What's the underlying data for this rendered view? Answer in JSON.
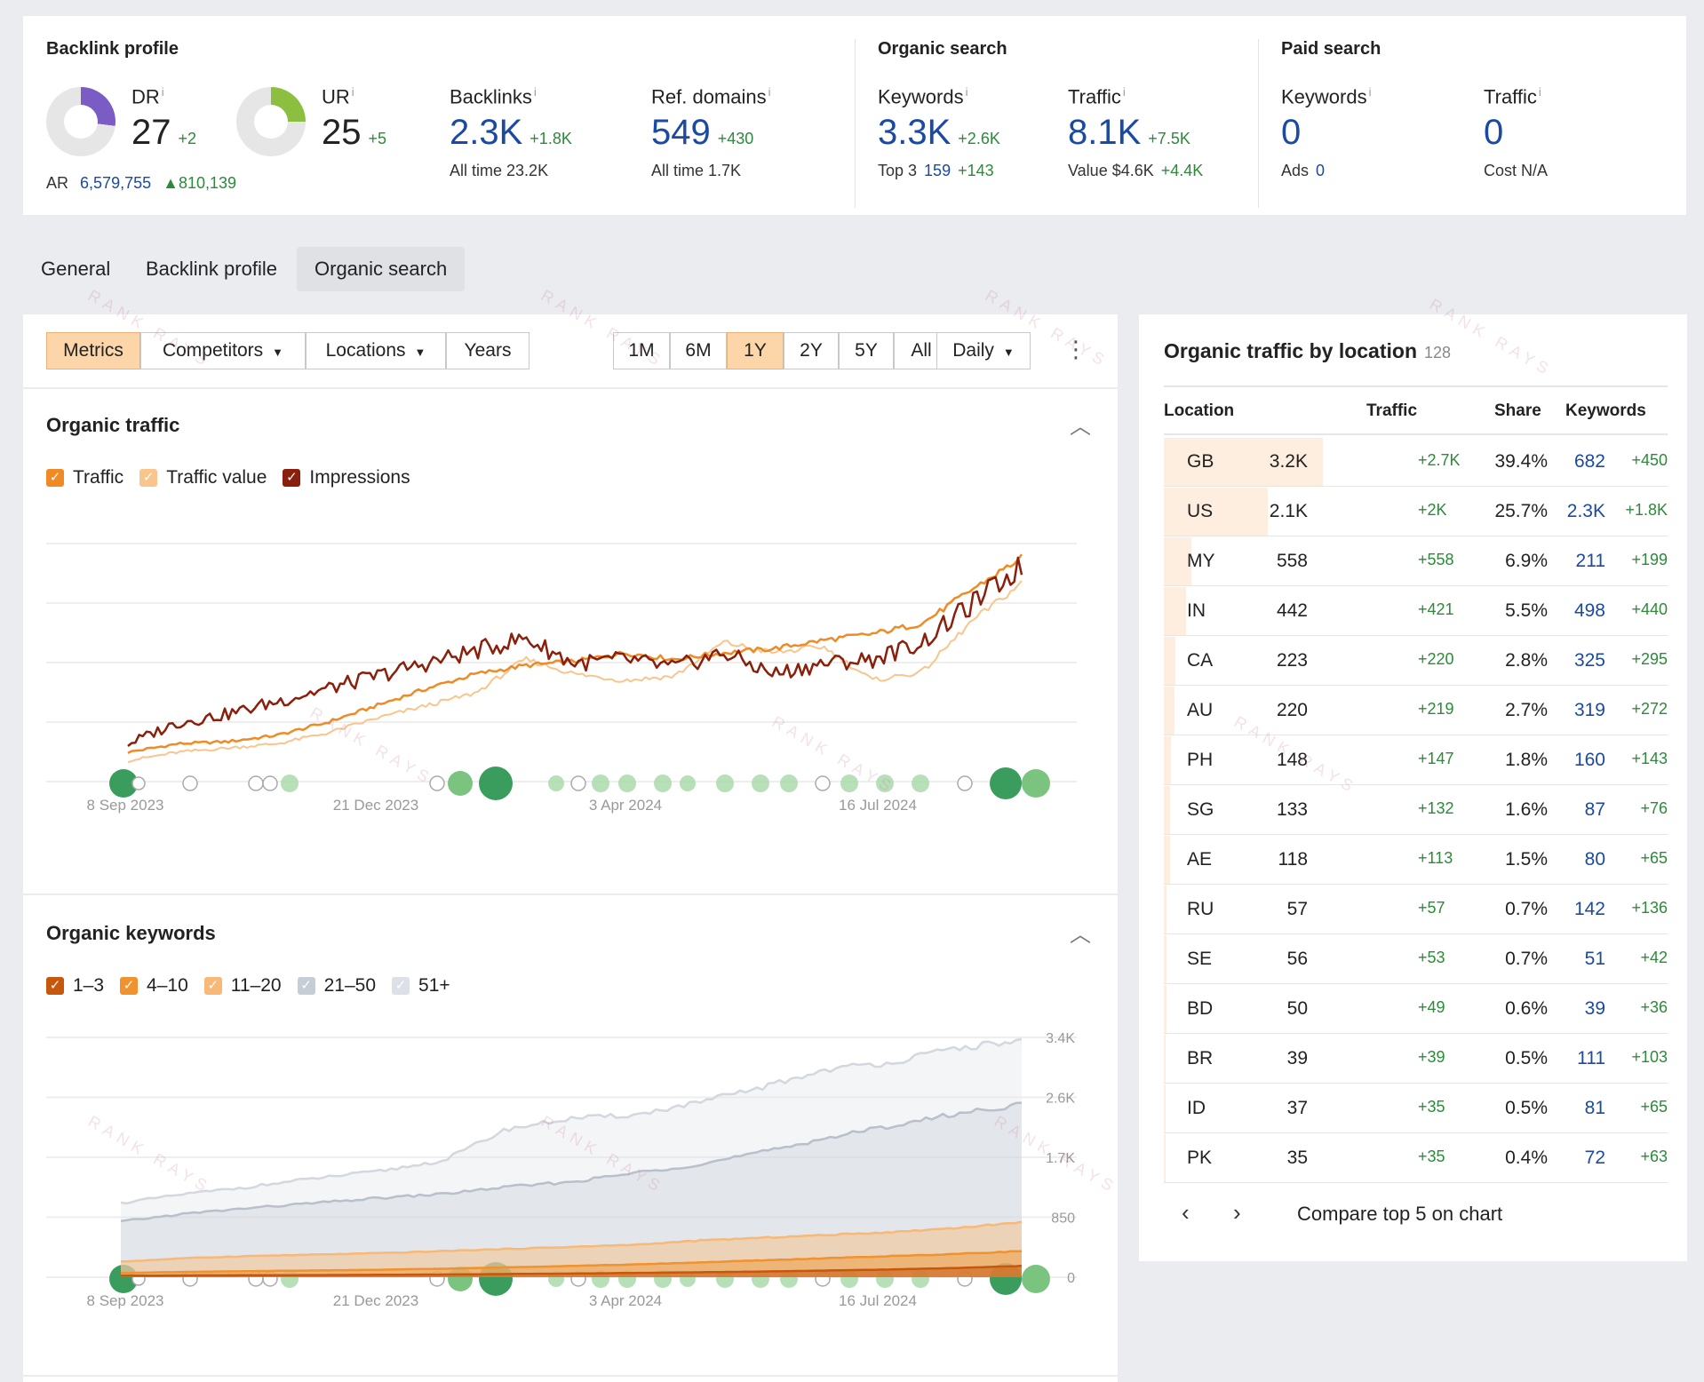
{
  "overview": {
    "backlink_profile": {
      "title": "Backlink profile",
      "dr": {
        "label": "DR",
        "value": "27",
        "delta": "+2",
        "ring_fill": 0.27
      },
      "ur": {
        "label": "UR",
        "value": "25",
        "delta": "+5",
        "ring_fill": 0.25
      },
      "ar": {
        "label": "AR",
        "value": "6,579,755",
        "delta": "▲810,139"
      },
      "backlinks": {
        "label": "Backlinks",
        "value": "2.3K",
        "delta": "+1.8K",
        "sub_label": "All time",
        "sub_value": "23.2K"
      },
      "ref_domains": {
        "label": "Ref. domains",
        "value": "549",
        "delta": "+430",
        "sub_label": "All time",
        "sub_value": "1.7K"
      }
    },
    "organic_search": {
      "title": "Organic search",
      "keywords": {
        "label": "Keywords",
        "value": "3.3K",
        "delta": "+2.6K",
        "sub_label": "Top 3",
        "sub_value": "159",
        "sub_delta": "+143"
      },
      "traffic": {
        "label": "Traffic",
        "value": "8.1K",
        "delta": "+7.5K",
        "sub_label": "Value",
        "sub_value": "$4.6K",
        "sub_delta": "+4.4K"
      }
    },
    "paid_search": {
      "title": "Paid search",
      "keywords": {
        "label": "Keywords",
        "value": "0",
        "sub_label": "Ads",
        "sub_value": "0"
      },
      "traffic": {
        "label": "Traffic",
        "value": "0",
        "sub_label": "Cost",
        "sub_value": "N/A"
      }
    },
    "info_glyph": "i"
  },
  "tabs": [
    "General",
    "Backlink profile",
    "Organic search"
  ],
  "toolbar": {
    "metrics": "Metrics",
    "competitors": "Competitors",
    "locations": "Locations",
    "years": "Years",
    "ranges": [
      "1M",
      "6M",
      "1Y",
      "2Y",
      "5Y",
      "All"
    ],
    "selected_range": "1Y",
    "granularity": "Daily"
  },
  "organic_traffic": {
    "title": "Organic traffic",
    "legend": [
      "Traffic",
      "Traffic value",
      "Impressions"
    ]
  },
  "organic_keywords": {
    "title": "Organic keywords",
    "legend": [
      "1–3",
      "4–10",
      "11–20",
      "21–50",
      "51+"
    ]
  },
  "colors": {
    "traffic": "#f08a24",
    "traffic_value": "#f9c58d",
    "impressions": "#8a1f0b",
    "kw_1_3": "#c8570e",
    "kw_4_10": "#f0922d",
    "kw_11_20": "#f7b878",
    "kw_21_50": "#c7cdd6",
    "kw_51": "#dde1e7",
    "accent_blue": "#1c4aa0",
    "positive": "#2c8a3a"
  },
  "chart_data": [
    {
      "type": "line",
      "title": "Organic traffic",
      "x_ticks": [
        "8 Sep 2023",
        "21 Dec 2023",
        "3 Apr 2024",
        "16 Jul 2024"
      ],
      "series": [
        {
          "name": "Traffic",
          "values": [
            0.08,
            0.12,
            0.13,
            0.16,
            0.22,
            0.3,
            0.38,
            0.45,
            0.49,
            0.51,
            0.55,
            0.52,
            0.55,
            0.57,
            0.61,
            0.64,
            0.69,
            0.85,
            1.0
          ]
        },
        {
          "name": "Traffic value",
          "values": [
            0.04,
            0.08,
            0.1,
            0.12,
            0.17,
            0.24,
            0.3,
            0.36,
            0.52,
            0.45,
            0.42,
            0.44,
            0.6,
            0.55,
            0.58,
            0.42,
            0.46,
            0.7,
            0.88
          ]
        },
        {
          "name": "Impressions",
          "values": [
            0.12,
            0.22,
            0.26,
            0.32,
            0.38,
            0.44,
            0.5,
            0.56,
            0.62,
            0.5,
            0.52,
            0.48,
            0.55,
            0.45,
            0.5,
            0.52,
            0.6,
            0.78,
            0.96
          ]
        }
      ],
      "y_scale": "relative (no axis labels shown)"
    },
    {
      "type": "area",
      "title": "Organic keywords",
      "x_ticks": [
        "8 Sep 2023",
        "21 Dec 2023",
        "3 Apr 2024",
        "16 Jul 2024"
      ],
      "y_ticks": [
        "3.4K",
        "2.6K",
        "1.7K",
        "850",
        "0"
      ],
      "ylim": [
        0,
        3400
      ],
      "series": [
        {
          "name": "1–3",
          "values": [
            20,
            25,
            28,
            30,
            34,
            38,
            45,
            52,
            60,
            70,
            80,
            95,
            110,
            130,
            160
          ]
        },
        {
          "name": "4–10",
          "values": [
            60,
            75,
            85,
            95,
            105,
            120,
            140,
            160,
            180,
            210,
            240,
            270,
            300,
            330,
            370
          ]
        },
        {
          "name": "11–20",
          "values": [
            220,
            270,
            300,
            320,
            340,
            370,
            400,
            430,
            460,
            520,
            560,
            600,
            640,
            700,
            780
          ]
        },
        {
          "name": "21–50",
          "values": [
            790,
            900,
            980,
            1050,
            1120,
            1180,
            1280,
            1350,
            1480,
            1600,
            1780,
            1980,
            2150,
            2320,
            2450
          ]
        },
        {
          "name": "51+",
          "values": [
            1050,
            1180,
            1280,
            1400,
            1500,
            1650,
            2100,
            2250,
            2300,
            2480,
            2700,
            2950,
            3050,
            3250,
            3350
          ]
        }
      ]
    }
  ],
  "locations_table": {
    "title": "Organic traffic by location",
    "count": "128",
    "headers": [
      "Location",
      "Traffic",
      "Share",
      "Keywords"
    ],
    "rows": [
      {
        "loc": "GB",
        "traffic": "3.2K",
        "tdelta": "+2.7K",
        "share": "39.4%",
        "kw": "682",
        "kdelta": "+450",
        "fill": 0.394
      },
      {
        "loc": "US",
        "traffic": "2.1K",
        "tdelta": "+2K",
        "share": "25.7%",
        "kw": "2.3K",
        "kdelta": "+1.8K",
        "fill": 0.257
      },
      {
        "loc": "MY",
        "traffic": "558",
        "tdelta": "+558",
        "share": "6.9%",
        "kw": "211",
        "kdelta": "+199",
        "fill": 0.069
      },
      {
        "loc": "IN",
        "traffic": "442",
        "tdelta": "+421",
        "share": "5.5%",
        "kw": "498",
        "kdelta": "+440",
        "fill": 0.055
      },
      {
        "loc": "CA",
        "traffic": "223",
        "tdelta": "+220",
        "share": "2.8%",
        "kw": "325",
        "kdelta": "+295",
        "fill": 0.028
      },
      {
        "loc": "AU",
        "traffic": "220",
        "tdelta": "+219",
        "share": "2.7%",
        "kw": "319",
        "kdelta": "+272",
        "fill": 0.027
      },
      {
        "loc": "PH",
        "traffic": "148",
        "tdelta": "+147",
        "share": "1.8%",
        "kw": "160",
        "kdelta": "+143",
        "fill": 0.018
      },
      {
        "loc": "SG",
        "traffic": "133",
        "tdelta": "+132",
        "share": "1.6%",
        "kw": "87",
        "kdelta": "+76",
        "fill": 0.016
      },
      {
        "loc": "AE",
        "traffic": "118",
        "tdelta": "+113",
        "share": "1.5%",
        "kw": "80",
        "kdelta": "+65",
        "fill": 0.015
      },
      {
        "loc": "RU",
        "traffic": "57",
        "tdelta": "+57",
        "share": "0.7%",
        "kw": "142",
        "kdelta": "+136",
        "fill": 0.007
      },
      {
        "loc": "SE",
        "traffic": "56",
        "tdelta": "+53",
        "share": "0.7%",
        "kw": "51",
        "kdelta": "+42",
        "fill": 0.007
      },
      {
        "loc": "BD",
        "traffic": "50",
        "tdelta": "+49",
        "share": "0.6%",
        "kw": "39",
        "kdelta": "+36",
        "fill": 0.006
      },
      {
        "loc": "BR",
        "traffic": "39",
        "tdelta": "+39",
        "share": "0.5%",
        "kw": "111",
        "kdelta": "+103",
        "fill": 0.005
      },
      {
        "loc": "ID",
        "traffic": "37",
        "tdelta": "+35",
        "share": "0.5%",
        "kw": "81",
        "kdelta": "+65",
        "fill": 0.005
      },
      {
        "loc": "PK",
        "traffic": "35",
        "tdelta": "+35",
        "share": "0.4%",
        "kw": "72",
        "kdelta": "+63",
        "fill": 0.004
      }
    ],
    "compare_label": "Compare top 5 on chart"
  },
  "watermark": "RANK RAYS"
}
